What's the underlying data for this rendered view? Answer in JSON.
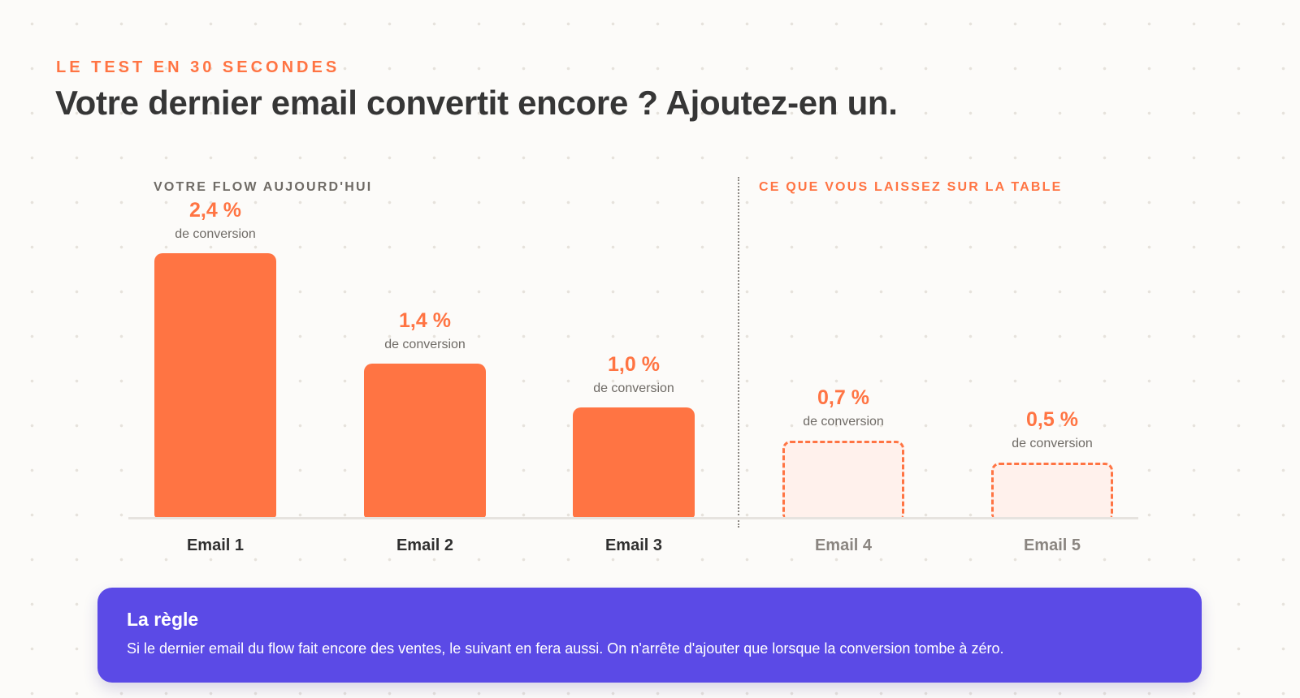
{
  "eyebrow": "LE TEST EN 30 SECONDES",
  "headline": "Votre dernier email convertit encore ? Ajoutez-en un.",
  "sections": {
    "left": "VOTRE FLOW AUJOURD'HUI",
    "right": "CE QUE VOUS LAISSEZ SUR LA TABLE"
  },
  "chart_data": {
    "type": "bar",
    "title": "",
    "xlabel": "",
    "ylabel": "",
    "ylim": [
      0,
      2.4
    ],
    "grid": false,
    "unit": "%",
    "categories": [
      "Email 1",
      "Email 2",
      "Email 3",
      "Email 4",
      "Email 5"
    ],
    "values": [
      2.4,
      1.4,
      1.0,
      0.7,
      0.5
    ],
    "value_labels": [
      "2,4 %",
      "1,4 %",
      "1,0 %",
      "0,7 %",
      "0,5 %"
    ],
    "value_sublabel": "de conversion",
    "projected": [
      false,
      false,
      false,
      true,
      true
    ],
    "colors": {
      "actual": "#ff7443",
      "projected_fill": "#fff1ec",
      "projected_border": "#ff7443"
    }
  },
  "rule": {
    "title": "La règle",
    "text": "Si le dernier email du flow fait encore des ventes, le suivant en fera aussi. On n'arrête d'ajouter que lorsque la conversion tombe à zéro."
  }
}
